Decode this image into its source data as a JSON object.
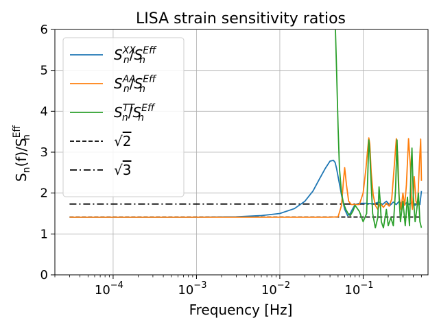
{
  "chart_data": {
    "type": "line",
    "title": "LISA strain sensitivity ratios",
    "xlabel": "Frequency [Hz]",
    "ylabel": "S_n(f)/S_n^Eff",
    "xscale": "log",
    "xlim": [
      2e-05,
      0.6
    ],
    "ylim": [
      0,
      6
    ],
    "grid": true,
    "legend_position": "top-left",
    "x_ticks": [
      {
        "base": "10",
        "exp": "−4",
        "value": 0.0001
      },
      {
        "base": "10",
        "exp": "−3",
        "value": 0.001
      },
      {
        "base": "10",
        "exp": "−2",
        "value": 0.01
      },
      {
        "base": "10",
        "exp": "−1",
        "value": 0.1
      }
    ],
    "y_ticks": [
      "0",
      "1",
      "2",
      "3",
      "4",
      "5",
      "6"
    ],
    "series": [
      {
        "name": "Sn^XX/Sn^Eff",
        "label_base": "S",
        "label_sub": "n",
        "label_sup": "XX",
        "label_den_base": "S",
        "label_den_sub": "n",
        "label_den_sup": "Eff",
        "color": "#1f77b4",
        "style": "solid",
        "x": [
          3e-05,
          0.0001,
          0.001,
          0.003,
          0.006,
          0.01,
          0.015,
          0.02,
          0.025,
          0.03,
          0.035,
          0.04,
          0.044,
          0.046,
          0.048,
          0.05,
          0.055,
          0.06,
          0.065,
          0.07,
          0.075,
          0.08,
          0.09,
          0.1,
          0.11,
          0.12,
          0.13,
          0.14,
          0.155,
          0.17,
          0.19,
          0.21,
          0.23,
          0.25,
          0.27,
          0.3,
          0.33,
          0.36,
          0.39,
          0.42,
          0.45,
          0.48,
          0.5
        ],
        "y": [
          1.41,
          1.41,
          1.41,
          1.42,
          1.45,
          1.5,
          1.62,
          1.8,
          2.05,
          2.35,
          2.6,
          2.78,
          2.8,
          2.75,
          2.6,
          2.4,
          1.95,
          1.6,
          1.45,
          1.5,
          1.62,
          1.72,
          1.75,
          1.75,
          1.75,
          1.74,
          1.74,
          1.75,
          1.78,
          1.72,
          1.8,
          1.7,
          1.78,
          1.72,
          1.8,
          1.7,
          1.76,
          1.72,
          1.78,
          1.7,
          1.8,
          1.72,
          2.05
        ]
      },
      {
        "name": "Sn^AA/Sn^Eff",
        "label_base": "S",
        "label_sub": "n",
        "label_sup": "AA",
        "label_den_base": "S",
        "label_den_sub": "n",
        "label_den_sup": "Eff",
        "color": "#ff7f0e",
        "style": "solid",
        "x": [
          3e-05,
          0.001,
          0.01,
          0.04,
          0.05,
          0.055,
          0.058,
          0.06,
          0.063,
          0.067,
          0.072,
          0.08,
          0.09,
          0.1,
          0.108,
          0.113,
          0.117,
          0.12,
          0.125,
          0.132,
          0.14,
          0.15,
          0.16,
          0.175,
          0.19,
          0.205,
          0.22,
          0.235,
          0.25,
          0.26,
          0.27,
          0.285,
          0.3,
          0.315,
          0.33,
          0.35,
          0.37,
          0.38,
          0.39,
          0.41,
          0.43,
          0.45,
          0.47,
          0.49,
          0.5
        ],
        "y": [
          1.41,
          1.41,
          1.41,
          1.41,
          1.42,
          1.7,
          2.3,
          2.62,
          2.2,
          1.8,
          1.72,
          1.72,
          1.72,
          2.0,
          2.6,
          3.05,
          3.35,
          3.2,
          2.5,
          1.95,
          1.7,
          1.6,
          1.75,
          1.65,
          1.75,
          1.68,
          1.85,
          2.6,
          3.33,
          2.9,
          1.9,
          1.6,
          2.0,
          1.7,
          2.2,
          3.33,
          2.6,
          1.75,
          1.6,
          2.4,
          1.8,
          1.7,
          2.6,
          3.32,
          2.3
        ]
      },
      {
        "name": "Sn^TT/Sn^Eff",
        "label_base": "S",
        "label_sub": "n",
        "label_sup": "TT",
        "label_den_base": "S",
        "label_den_sub": "n",
        "label_den_sup": "Eff",
        "color": "#2ca02c",
        "style": "solid",
        "x": [
          0.0465,
          0.048,
          0.05,
          0.052,
          0.055,
          0.058,
          0.062,
          0.066,
          0.07,
          0.075,
          0.08,
          0.09,
          0.1,
          0.11,
          0.117,
          0.12,
          0.125,
          0.13,
          0.14,
          0.15,
          0.155,
          0.16,
          0.165,
          0.175,
          0.19,
          0.2,
          0.215,
          0.23,
          0.245,
          0.255,
          0.265,
          0.28,
          0.3,
          0.32,
          0.34,
          0.36,
          0.375,
          0.385,
          0.4,
          0.42,
          0.44,
          0.46,
          0.48,
          0.5
        ],
        "y": [
          6.0,
          5.0,
          3.6,
          2.6,
          2.0,
          1.75,
          1.6,
          1.5,
          1.45,
          1.55,
          1.7,
          1.55,
          1.3,
          1.5,
          3.3,
          3.0,
          2.2,
          1.5,
          1.15,
          1.4,
          2.15,
          1.8,
          1.3,
          1.15,
          1.6,
          1.2,
          1.4,
          1.2,
          2.1,
          3.3,
          2.2,
          1.3,
          1.8,
          1.2,
          1.9,
          1.2,
          2.6,
          3.1,
          1.9,
          1.3,
          1.6,
          2.0,
          1.3,
          1.15
        ]
      },
      {
        "name": "sqrt(2)",
        "label_sqrt": "2",
        "color": "#000000",
        "style": "dashed",
        "x": [
          3e-05,
          0.5
        ],
        "y": [
          1.41421,
          1.41421
        ]
      },
      {
        "name": "sqrt(3)",
        "label_sqrt": "3",
        "color": "#000000",
        "style": "dashdot",
        "x": [
          3e-05,
          0.5
        ],
        "y": [
          1.73205,
          1.73205
        ]
      }
    ]
  }
}
